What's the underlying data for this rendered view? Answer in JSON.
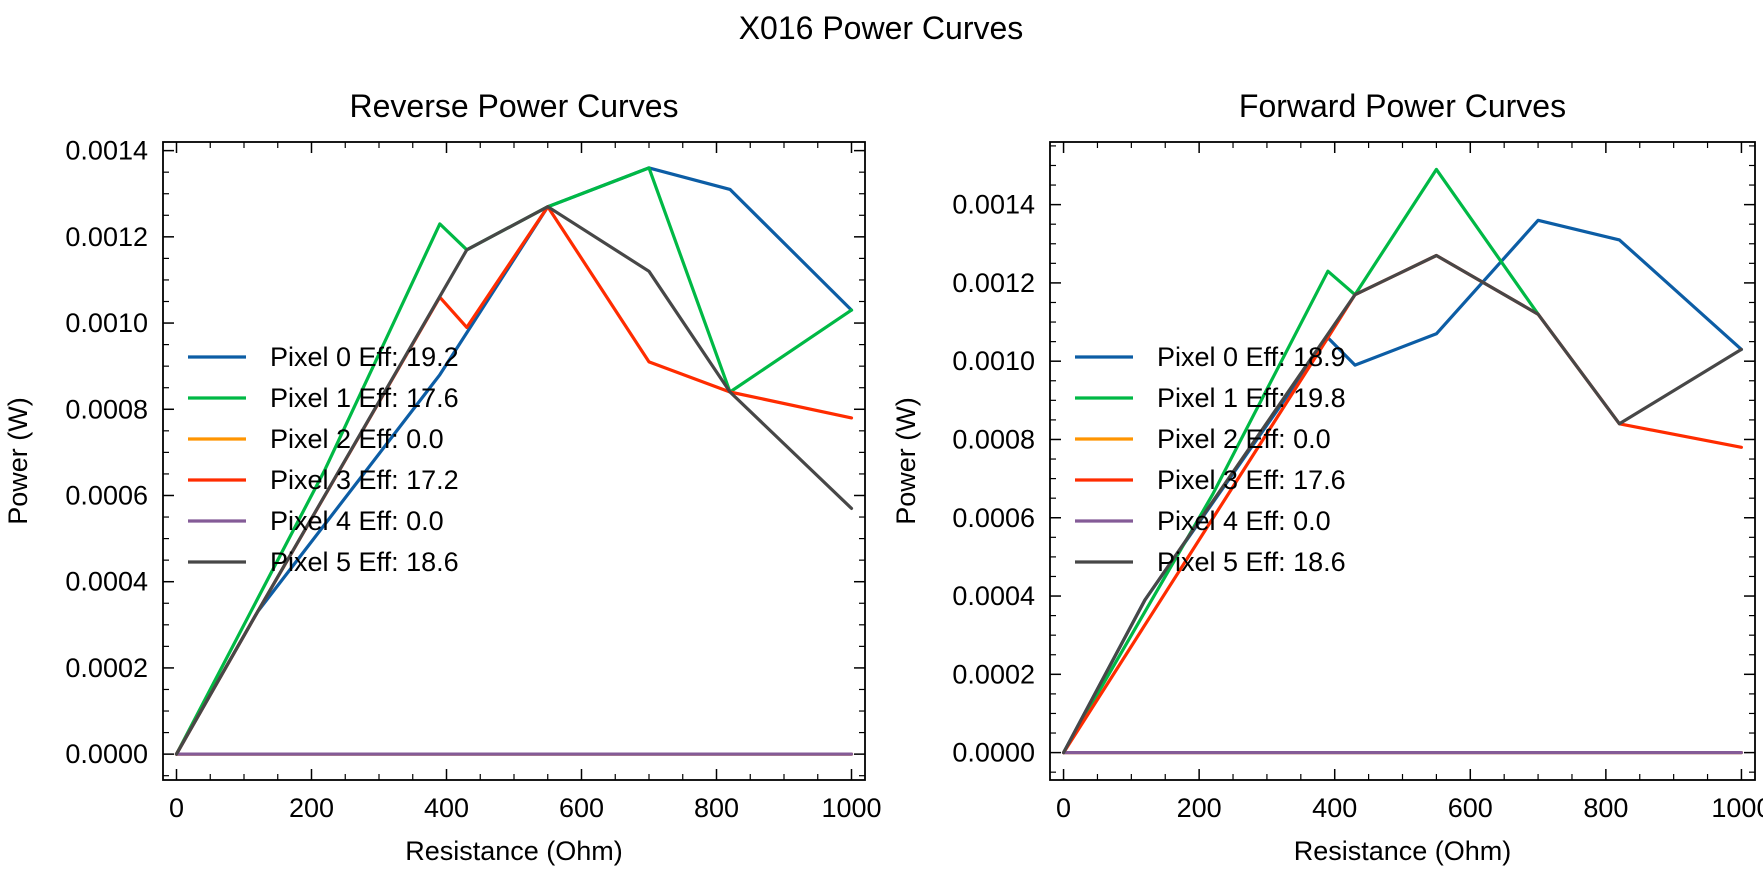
{
  "figure": {
    "title": "X016 Power Curves"
  },
  "chart_data": [
    {
      "type": "line",
      "title": "Reverse Power Curves",
      "xlabel": "Resistance (Ohm)",
      "ylabel": "Power (W)",
      "xlim": [
        -20,
        1020
      ],
      "ylim": [
        -6e-05,
        0.00142
      ],
      "xticks": [
        0,
        200,
        400,
        600,
        800,
        1000
      ],
      "xtick_labels": [
        "0",
        "200",
        "400",
        "600",
        "800",
        "1000"
      ],
      "yticks": [
        0,
        0.0002,
        0.0004,
        0.0006,
        0.0008,
        0.001,
        0.0012,
        0.0014
      ],
      "ytick_labels": [
        "0.0000",
        "0.0002",
        "0.0004",
        "0.0006",
        "0.0008",
        "0.0010",
        "0.0012",
        "0.0014"
      ],
      "grid": false,
      "legend_position": "center-left",
      "series": [
        {
          "name": "Pixel 0 Eff: 19.2",
          "color": "#0C5DA5",
          "x": [
            0,
            120,
            390,
            550,
            700,
            820,
            1000
          ],
          "y": [
            0,
            0.00033,
            0.00088,
            0.00127,
            0.00136,
            0.00131,
            0.00103
          ]
        },
        {
          "name": "Pixel 1 Eff: 17.6",
          "color": "#00B945",
          "x": [
            0,
            220,
            390,
            430,
            550,
            700,
            820,
            1000
          ],
          "y": [
            0,
            0.00066,
            0.00123,
            0.00117,
            0.00127,
            0.00136,
            0.00084,
            0.00103
          ]
        },
        {
          "name": "Pixel 2 Eff: 0.0",
          "color": "#FF9500",
          "x": [
            0,
            1000
          ],
          "y": [
            0,
            0
          ]
        },
        {
          "name": "Pixel 3 Eff: 17.2",
          "color": "#FF2C00",
          "x": [
            0,
            120,
            390,
            430,
            550,
            700,
            820,
            1000
          ],
          "y": [
            0,
            0.00033,
            0.00106,
            0.00099,
            0.00127,
            0.00091,
            0.00084,
            0.00078
          ]
        },
        {
          "name": "Pixel 4 Eff: 0.0",
          "color": "#845B97",
          "x": [
            0,
            1000
          ],
          "y": [
            0,
            0
          ]
        },
        {
          "name": "Pixel 5 Eff: 18.6",
          "color": "#474747",
          "x": [
            0,
            120,
            430,
            550,
            700,
            820,
            1000
          ],
          "y": [
            0,
            0.00033,
            0.00117,
            0.00127,
            0.00112,
            0.00084,
            0.00057
          ]
        }
      ]
    },
    {
      "type": "line",
      "title": "Forward Power Curves",
      "xlabel": "Resistance (Ohm)",
      "ylabel": "Power (W)",
      "xlim": [
        -20,
        1020
      ],
      "ylim": [
        -7e-05,
        0.00156
      ],
      "xticks": [
        0,
        200,
        400,
        600,
        800,
        1000
      ],
      "xtick_labels": [
        "0",
        "200",
        "400",
        "600",
        "800",
        "1000"
      ],
      "yticks": [
        0,
        0.0002,
        0.0004,
        0.0006,
        0.0008,
        0.001,
        0.0012,
        0.0014
      ],
      "ytick_labels": [
        "0.0000",
        "0.0002",
        "0.0004",
        "0.0006",
        "0.0008",
        "0.0010",
        "0.0012",
        "0.0014"
      ],
      "grid": false,
      "legend_position": "center-left",
      "series": [
        {
          "name": "Pixel 0 Eff: 18.9",
          "color": "#0C5DA5",
          "x": [
            0,
            120,
            390,
            430,
            550,
            700,
            820,
            1000
          ],
          "y": [
            0,
            0.00039,
            0.00106,
            0.00099,
            0.00107,
            0.00136,
            0.00131,
            0.00103
          ]
        },
        {
          "name": "Pixel 1 Eff: 19.8",
          "color": "#00B945",
          "x": [
            0,
            220,
            390,
            430,
            550,
            700
          ],
          "y": [
            0,
            0.00066,
            0.00123,
            0.00117,
            0.00149,
            0.00112
          ]
        },
        {
          "name": "Pixel 2 Eff: 0.0",
          "color": "#FF9500",
          "x": [
            0,
            1000
          ],
          "y": [
            0,
            0
          ]
        },
        {
          "name": "Pixel 3 Eff: 17.6",
          "color": "#FF2C00",
          "x": [
            0,
            390,
            430,
            550,
            700,
            820,
            1000
          ],
          "y": [
            0,
            0.00106,
            0.00117,
            0.00127,
            0.00112,
            0.00084,
            0.00078
          ]
        },
        {
          "name": "Pixel 4 Eff: 0.0",
          "color": "#845B97",
          "x": [
            0,
            1000
          ],
          "y": [
            0,
            0
          ]
        },
        {
          "name": "Pixel 5 Eff: 18.6",
          "color": "#474747",
          "x": [
            0,
            120,
            430,
            550,
            700,
            820,
            1000
          ],
          "y": [
            0,
            0.00039,
            0.00117,
            0.00127,
            0.00112,
            0.00084,
            0.00103
          ]
        }
      ]
    }
  ]
}
